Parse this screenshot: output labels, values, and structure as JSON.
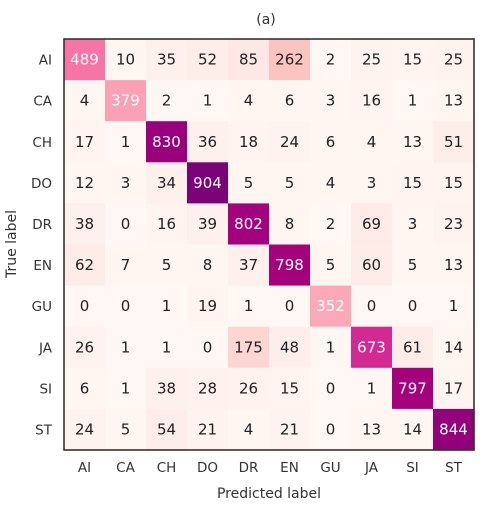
{
  "chart_data": {
    "type": "heatmap",
    "title": "(a)",
    "xlabel": "Predicted label",
    "ylabel": "True label",
    "x_categories": [
      "AI",
      "CA",
      "CH",
      "DO",
      "DR",
      "EN",
      "GU",
      "JA",
      "SI",
      "ST"
    ],
    "y_categories": [
      "AI",
      "CA",
      "CH",
      "DO",
      "DR",
      "EN",
      "GU",
      "JA",
      "SI",
      "ST"
    ],
    "colormap": [
      "#fff7f3",
      "#fde0dd",
      "#fcc5c0",
      "#fa9fb5",
      "#f768a1",
      "#dd3497",
      "#ae017e",
      "#7a0177"
    ],
    "value_range": [
      0,
      904
    ],
    "values": [
      [
        489,
        10,
        35,
        52,
        85,
        262,
        2,
        25,
        15,
        25
      ],
      [
        4,
        379,
        2,
        1,
        4,
        6,
        3,
        16,
        1,
        13
      ],
      [
        17,
        1,
        830,
        36,
        18,
        24,
        6,
        4,
        13,
        51
      ],
      [
        12,
        3,
        34,
        904,
        5,
        5,
        4,
        3,
        15,
        15
      ],
      [
        38,
        0,
        16,
        39,
        802,
        8,
        2,
        69,
        3,
        23
      ],
      [
        62,
        7,
        5,
        8,
        37,
        798,
        5,
        60,
        5,
        13
      ],
      [
        0,
        0,
        1,
        19,
        1,
        0,
        352,
        0,
        0,
        1
      ],
      [
        26,
        1,
        1,
        0,
        175,
        48,
        1,
        673,
        61,
        14
      ],
      [
        6,
        1,
        38,
        28,
        26,
        15,
        0,
        1,
        797,
        17
      ],
      [
        24,
        5,
        54,
        21,
        4,
        21,
        0,
        13,
        14,
        844
      ]
    ]
  }
}
